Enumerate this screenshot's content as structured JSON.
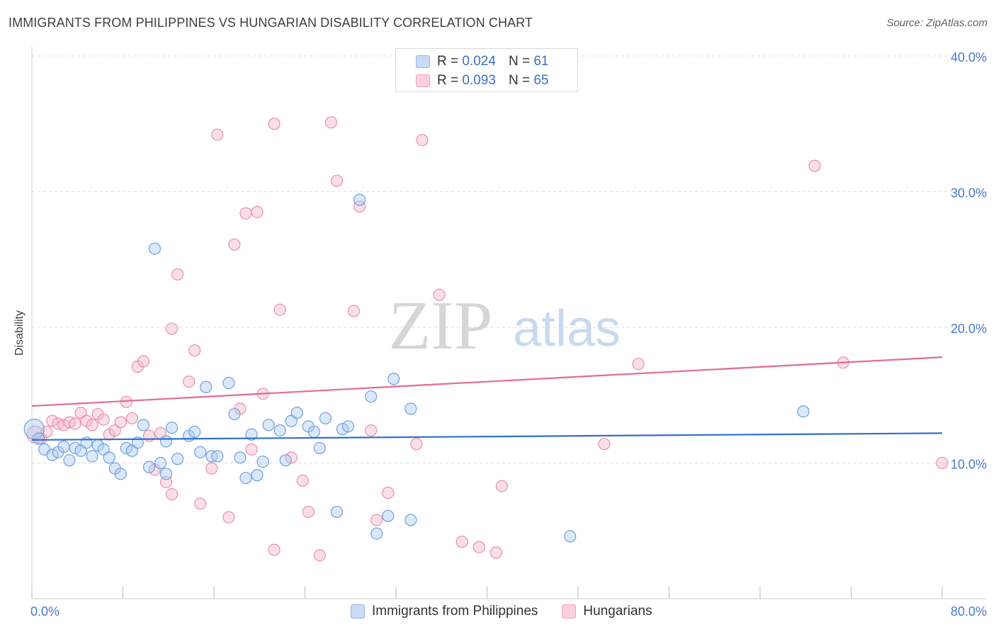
{
  "title": "IMMIGRANTS FROM PHILIPPINES VS HUNGARIAN DISABILITY CORRELATION CHART",
  "source": "Source: ZipAtlas.com",
  "watermark": {
    "zip": "ZIP",
    "atlas": "atlas"
  },
  "legend": {
    "rows": [
      {
        "r_label": "R = ",
        "r_value": "0.024",
        "n_label": "N = ",
        "n_value": "61",
        "color": "#aecbf2"
      },
      {
        "r_label": "R = ",
        "r_value": "0.093",
        "n_label": "N = ",
        "n_value": "65",
        "color": "#f7b8cb"
      }
    ]
  },
  "bottom_legend": [
    "Immigrants from Philippines",
    "Hungarians"
  ],
  "colors": {
    "blue_fill": "#aecbf2",
    "blue_stroke": "#6f9fe0",
    "blue_line": "#2f6fcf",
    "pink_fill": "#f7b8cb",
    "pink_stroke": "#ea8fab",
    "pink_line": "#e36a93",
    "tick_text": "#4a7bd0",
    "grid": "#dddddd"
  },
  "chart_data": {
    "type": "scatter",
    "title": "IMMIGRANTS FROM PHILIPPINES VS HUNGARIAN DISABILITY CORRELATION CHART",
    "xlabel": "",
    "ylabel": "Disability",
    "xlim": [
      0,
      80
    ],
    "ylim": [
      0,
      40
    ],
    "x_tick_labels": [
      "0.0%",
      "80.0%"
    ],
    "y_ticks": [
      10,
      20,
      30,
      40
    ],
    "y_tick_labels": [
      "10.0%",
      "20.0%",
      "30.0%",
      "40.0%"
    ],
    "grid": true,
    "series": [
      {
        "name": "Immigrants from Philippines",
        "R": 0.024,
        "N": 61,
        "trend": [
          [
            0,
            11.7
          ],
          [
            80,
            12.2
          ]
        ],
        "points": [
          [
            0.2,
            12.5
          ],
          [
            0.6,
            11.8
          ],
          [
            1.1,
            11.0
          ],
          [
            1.8,
            10.6
          ],
          [
            2.3,
            10.8
          ],
          [
            2.8,
            11.2
          ],
          [
            3.3,
            10.2
          ],
          [
            3.8,
            11.1
          ],
          [
            4.3,
            10.9
          ],
          [
            4.8,
            11.5
          ],
          [
            5.3,
            10.5
          ],
          [
            5.8,
            11.3
          ],
          [
            6.3,
            11.0
          ],
          [
            6.8,
            10.4
          ],
          [
            7.3,
            9.6
          ],
          [
            7.8,
            9.2
          ],
          [
            8.3,
            11.1
          ],
          [
            8.8,
            10.9
          ],
          [
            9.3,
            11.5
          ],
          [
            9.8,
            12.8
          ],
          [
            10.3,
            9.7
          ],
          [
            10.8,
            25.8
          ],
          [
            11.3,
            10.0
          ],
          [
            11.8,
            9.2
          ],
          [
            12.3,
            12.6
          ],
          [
            11.8,
            11.6
          ],
          [
            12.8,
            10.3
          ],
          [
            13.8,
            12.0
          ],
          [
            14.3,
            12.3
          ],
          [
            14.8,
            10.8
          ],
          [
            15.3,
            15.6
          ],
          [
            15.8,
            10.5
          ],
          [
            16.3,
            10.5
          ],
          [
            17.3,
            15.9
          ],
          [
            17.8,
            13.6
          ],
          [
            18.3,
            10.4
          ],
          [
            18.8,
            8.9
          ],
          [
            19.3,
            12.1
          ],
          [
            19.8,
            9.1
          ],
          [
            20.3,
            10.1
          ],
          [
            20.8,
            12.8
          ],
          [
            21.8,
            12.4
          ],
          [
            22.3,
            10.2
          ],
          [
            22.8,
            13.1
          ],
          [
            23.3,
            13.7
          ],
          [
            24.3,
            12.7
          ],
          [
            24.8,
            12.3
          ],
          [
            25.3,
            11.1
          ],
          [
            25.8,
            13.3
          ],
          [
            26.8,
            6.4
          ],
          [
            27.3,
            12.5
          ],
          [
            27.8,
            12.7
          ],
          [
            28.8,
            29.4
          ],
          [
            29.8,
            14.9
          ],
          [
            30.3,
            4.8
          ],
          [
            31.3,
            6.1
          ],
          [
            31.8,
            16.2
          ],
          [
            33.3,
            14.0
          ],
          [
            33.3,
            5.8
          ],
          [
            47.3,
            4.6
          ],
          [
            67.8,
            13.8
          ]
        ]
      },
      {
        "name": "Hungarians",
        "R": 0.093,
        "N": 65,
        "trend": [
          [
            0,
            14.2
          ],
          [
            80,
            17.8
          ]
        ],
        "points": [
          [
            0.3,
            12.1
          ],
          [
            0.8,
            11.8
          ],
          [
            1.3,
            12.3
          ],
          [
            1.8,
            13.1
          ],
          [
            2.3,
            12.9
          ],
          [
            2.8,
            12.8
          ],
          [
            3.3,
            13.0
          ],
          [
            3.8,
            12.9
          ],
          [
            4.3,
            13.7
          ],
          [
            4.8,
            13.1
          ],
          [
            5.3,
            12.8
          ],
          [
            5.8,
            13.6
          ],
          [
            6.3,
            13.2
          ],
          [
            6.8,
            12.1
          ],
          [
            7.3,
            12.4
          ],
          [
            7.8,
            13.0
          ],
          [
            8.3,
            14.5
          ],
          [
            8.8,
            13.3
          ],
          [
            9.3,
            17.1
          ],
          [
            9.8,
            17.5
          ],
          [
            10.3,
            12.0
          ],
          [
            10.8,
            9.5
          ],
          [
            11.3,
            12.2
          ],
          [
            11.8,
            8.6
          ],
          [
            12.3,
            7.7
          ],
          [
            12.3,
            19.9
          ],
          [
            12.8,
            23.9
          ],
          [
            13.8,
            16.0
          ],
          [
            14.3,
            18.3
          ],
          [
            14.8,
            7.0
          ],
          [
            15.8,
            9.6
          ],
          [
            16.3,
            34.2
          ],
          [
            17.3,
            6.0
          ],
          [
            17.8,
            26.1
          ],
          [
            18.3,
            14.0
          ],
          [
            18.8,
            28.4
          ],
          [
            19.3,
            11.0
          ],
          [
            19.8,
            28.5
          ],
          [
            20.3,
            15.1
          ],
          [
            21.3,
            3.6
          ],
          [
            21.3,
            35.0
          ],
          [
            21.8,
            21.3
          ],
          [
            22.8,
            10.4
          ],
          [
            23.8,
            8.7
          ],
          [
            24.3,
            6.4
          ],
          [
            25.3,
            3.2
          ],
          [
            26.3,
            35.1
          ],
          [
            26.8,
            30.8
          ],
          [
            28.3,
            21.2
          ],
          [
            28.8,
            28.9
          ],
          [
            29.8,
            12.4
          ],
          [
            30.3,
            5.8
          ],
          [
            31.3,
            7.8
          ],
          [
            33.8,
            11.4
          ],
          [
            34.3,
            33.8
          ],
          [
            35.8,
            22.4
          ],
          [
            37.8,
            4.2
          ],
          [
            39.3,
            3.8
          ],
          [
            40.8,
            3.4
          ],
          [
            41.3,
            8.3
          ],
          [
            50.3,
            11.4
          ],
          [
            53.3,
            17.3
          ],
          [
            68.8,
            31.9
          ],
          [
            71.3,
            17.4
          ],
          [
            80.0,
            10.0
          ]
        ]
      }
    ]
  }
}
